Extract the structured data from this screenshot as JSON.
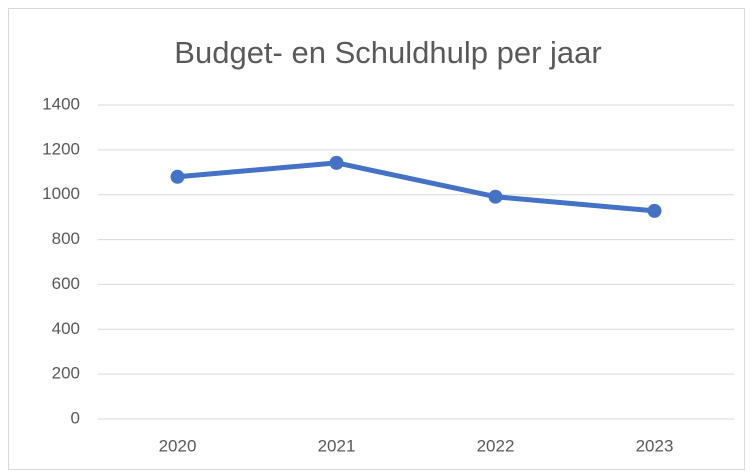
{
  "chart_data": {
    "type": "line",
    "title": "Budget- en Schuldhulp per jaar",
    "categories": [
      "2020",
      "2021",
      "2022",
      "2023"
    ],
    "series": [
      {
        "name": "Budget- en Schuldhulp",
        "color": "#4472c4",
        "values": [
          1080,
          1142,
          991,
          928
        ]
      }
    ],
    "ylim": [
      0,
      1400
    ],
    "yticks": [
      0,
      200,
      400,
      600,
      800,
      1000,
      1200,
      1400
    ],
    "grid": true
  }
}
